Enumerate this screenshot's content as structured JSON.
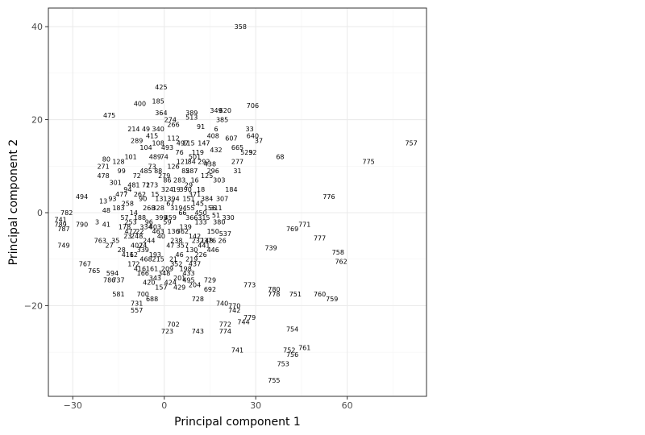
{
  "chart_data": {
    "type": "scatter",
    "xlabel": "Principal component 1",
    "ylabel": "Principal component 2",
    "xlim": [
      -38,
      86
    ],
    "ylim": [
      -39.5,
      44
    ],
    "x_ticks": [
      -30,
      0,
      30,
      60
    ],
    "y_ticks": [
      -20,
      0,
      20,
      40
    ],
    "x_tick_labels": [
      "−30",
      "0",
      "30",
      "60"
    ],
    "y_tick_labels": [
      "−20",
      "0",
      "20",
      "40"
    ],
    "grid": true,
    "grid_minor": true,
    "legend": "none",
    "point_style": "text labels (row ids)",
    "colors": {
      "panel_border": "#333333",
      "grid_major": "#ebebeb",
      "grid_minor": "#f5f5f5",
      "text": "#000000",
      "tick_text": "#4d4d4d"
    },
    "points": [
      {
        "label": "358",
        "x": 25,
        "y": 40
      },
      {
        "label": "425",
        "x": -1,
        "y": 27
      },
      {
        "label": "185",
        "x": -2,
        "y": 24
      },
      {
        "label": "400",
        "x": -8,
        "y": 23.5
      },
      {
        "label": "706",
        "x": 29,
        "y": 23
      },
      {
        "label": "349",
        "x": 17,
        "y": 22
      },
      {
        "label": "620",
        "x": 20,
        "y": 22
      },
      {
        "label": "389",
        "x": 9,
        "y": 21.5
      },
      {
        "label": "364",
        "x": -1,
        "y": 21.5
      },
      {
        "label": "475",
        "x": -18,
        "y": 21
      },
      {
        "label": "513",
        "x": 9,
        "y": 20.5
      },
      {
        "label": "274",
        "x": 2,
        "y": 20
      },
      {
        "label": "385",
        "x": 19,
        "y": 20
      },
      {
        "label": "266",
        "x": 3,
        "y": 19
      },
      {
        "label": "214",
        "x": -10,
        "y": 18
      },
      {
        "label": "49",
        "x": -6,
        "y": 18
      },
      {
        "label": "340",
        "x": -2,
        "y": 18
      },
      {
        "label": "91",
        "x": 12,
        "y": 18.5
      },
      {
        "label": "6",
        "x": 17,
        "y": 18
      },
      {
        "label": "33",
        "x": 28,
        "y": 18
      },
      {
        "label": "415",
        "x": -4,
        "y": 16.5
      },
      {
        "label": "408",
        "x": 16,
        "y": 16.5
      },
      {
        "label": "607",
        "x": 22,
        "y": 16
      },
      {
        "label": "640",
        "x": 29,
        "y": 16.5
      },
      {
        "label": "37",
        "x": 31,
        "y": 15.5
      },
      {
        "label": "289",
        "x": -9,
        "y": 15.5
      },
      {
        "label": "147",
        "x": 13,
        "y": 15
      },
      {
        "label": "665",
        "x": 24,
        "y": 14
      },
      {
        "label": "432",
        "x": 17,
        "y": 13.5
      },
      {
        "label": "529",
        "x": 27,
        "y": 13
      },
      {
        "label": "32",
        "x": 29,
        "y": 13
      },
      {
        "label": "68",
        "x": 38,
        "y": 12
      },
      {
        "label": "757",
        "x": 81,
        "y": 15
      },
      {
        "label": "775",
        "x": 67,
        "y": 11
      },
      {
        "label": "80",
        "x": -19,
        "y": 11.5
      },
      {
        "label": "128",
        "x": -15,
        "y": 11
      },
      {
        "label": "271",
        "x": -20,
        "y": 10
      },
      {
        "label": "277",
        "x": 24,
        "y": 11
      },
      {
        "label": "438",
        "x": 15,
        "y": 10.5
      },
      {
        "label": "31",
        "x": 24,
        "y": 9
      },
      {
        "label": "478",
        "x": -20,
        "y": 8
      },
      {
        "label": "301",
        "x": -16,
        "y": 6.5
      },
      {
        "label": "184",
        "x": 22,
        "y": 5
      },
      {
        "label": "494",
        "x": -27,
        "y": 3.5
      },
      {
        "label": "776",
        "x": 54,
        "y": 3.5
      },
      {
        "label": "330",
        "x": 21,
        "y": -1
      },
      {
        "label": "51",
        "x": 17,
        "y": -0.5
      },
      {
        "label": "782",
        "x": -32,
        "y": 0
      },
      {
        "label": "741",
        "x": -34,
        "y": -1.5
      },
      {
        "label": "789",
        "x": -34,
        "y": -2.5
      },
      {
        "label": "787",
        "x": -33,
        "y": -3.5
      },
      {
        "label": "790",
        "x": -27,
        "y": -2.5
      },
      {
        "label": "771",
        "x": 46,
        "y": -2.5
      },
      {
        "label": "769",
        "x": 42,
        "y": -3.5
      },
      {
        "label": "537",
        "x": 20,
        "y": -4.5
      },
      {
        "label": "777",
        "x": 51,
        "y": -5.5
      },
      {
        "label": "26",
        "x": 19,
        "y": -6
      },
      {
        "label": "749",
        "x": -33,
        "y": -7
      },
      {
        "label": "763",
        "x": -21,
        "y": -6
      },
      {
        "label": "739",
        "x": 35,
        "y": -7.5
      },
      {
        "label": "758",
        "x": 57,
        "y": -8.5
      },
      {
        "label": "762",
        "x": 58,
        "y": -10.5
      },
      {
        "label": "767",
        "x": -26,
        "y": -11
      },
      {
        "label": "765",
        "x": -23,
        "y": -12.5
      },
      {
        "label": "594",
        "x": -17,
        "y": -13
      },
      {
        "label": "786",
        "x": -18,
        "y": -14.5
      },
      {
        "label": "737",
        "x": -15,
        "y": -14.5
      },
      {
        "label": "729",
        "x": 15,
        "y": -14.5
      },
      {
        "label": "204",
        "x": 10,
        "y": -15.5
      },
      {
        "label": "495",
        "x": 8,
        "y": -14.5
      },
      {
        "label": "773",
        "x": 28,
        "y": -15.5
      },
      {
        "label": "780",
        "x": 36,
        "y": -16.5
      },
      {
        "label": "778",
        "x": 36,
        "y": -17.5
      },
      {
        "label": "751",
        "x": 43,
        "y": -17.5
      },
      {
        "label": "760",
        "x": 51,
        "y": -17.5
      },
      {
        "label": "759",
        "x": 55,
        "y": -18.5
      },
      {
        "label": "692",
        "x": 15,
        "y": -16.5
      },
      {
        "label": "581",
        "x": -15,
        "y": -17.5
      },
      {
        "label": "700",
        "x": -7,
        "y": -17.5
      },
      {
        "label": "688",
        "x": -4,
        "y": -18.5
      },
      {
        "label": "728",
        "x": 11,
        "y": -18.5
      },
      {
        "label": "731",
        "x": -9,
        "y": -19.5
      },
      {
        "label": "557",
        "x": -9,
        "y": -21
      },
      {
        "label": "740",
        "x": 19,
        "y": -19.5
      },
      {
        "label": "770",
        "x": 23,
        "y": -20
      },
      {
        "label": "742",
        "x": 23,
        "y": -21
      },
      {
        "label": "779",
        "x": 28,
        "y": -22.5
      },
      {
        "label": "744",
        "x": 26,
        "y": -23.5
      },
      {
        "label": "702",
        "x": 3,
        "y": -24
      },
      {
        "label": "772",
        "x": 20,
        "y": -24
      },
      {
        "label": "723",
        "x": 1,
        "y": -25.5
      },
      {
        "label": "743",
        "x": 11,
        "y": -25.5
      },
      {
        "label": "774",
        "x": 20,
        "y": -25.5
      },
      {
        "label": "754",
        "x": 42,
        "y": -25
      },
      {
        "label": "761",
        "x": 46,
        "y": -29
      },
      {
        "label": "752",
        "x": 41,
        "y": -29.5
      },
      {
        "label": "756",
        "x": 42,
        "y": -30.5
      },
      {
        "label": "741",
        "x": 24,
        "y": -29.5
      },
      {
        "label": "753",
        "x": 39,
        "y": -32.5
      },
      {
        "label": "755",
        "x": 36,
        "y": -36
      },
      {
        "label": "13",
        "x": -20,
        "y": 2.5
      },
      {
        "label": "93",
        "x": -17,
        "y": 3
      },
      {
        "label": "48",
        "x": -19,
        "y": 0.5
      },
      {
        "label": "3",
        "x": -22,
        "y": -2
      },
      {
        "label": "41",
        "x": -19,
        "y": -2.5
      },
      {
        "label": "57",
        "x": -13,
        "y": -1
      },
      {
        "label": "14",
        "x": -10,
        "y": 0
      },
      {
        "label": "22",
        "x": -8,
        "y": -4
      },
      {
        "label": "23",
        "x": -12,
        "y": -5
      },
      {
        "label": "35",
        "x": -16,
        "y": -6
      },
      {
        "label": "27",
        "x": -18,
        "y": -7
      },
      {
        "label": "28",
        "x": -14,
        "y": -8
      },
      {
        "label": "62",
        "x": -10,
        "y": -9
      },
      {
        "label": "24",
        "x": -7,
        "y": -7
      },
      {
        "label": "21",
        "x": 3,
        "y": -10
      },
      {
        "label": "96",
        "x": -5,
        "y": -2
      },
      {
        "label": "15",
        "x": -3,
        "y": 4
      },
      {
        "label": "19",
        "x": 4,
        "y": 5
      },
      {
        "label": "29",
        "x": 8,
        "y": 6
      },
      {
        "label": "16",
        "x": 10,
        "y": 7
      },
      {
        "label": "18",
        "x": 12,
        "y": 5
      },
      {
        "label": "125",
        "x": 14,
        "y": 8
      },
      {
        "label": "156",
        "x": 15,
        "y": 1
      },
      {
        "label": "133",
        "x": 12,
        "y": -2
      },
      {
        "label": "150",
        "x": 16,
        "y": -4
      },
      {
        "label": "148",
        "x": 14,
        "y": -6
      },
      {
        "label": "130",
        "x": 9,
        "y": -8
      },
      {
        "label": "46",
        "x": 5,
        "y": -9
      },
      {
        "label": "47",
        "x": 2,
        "y": -7
      },
      {
        "label": "40",
        "x": -1,
        "y": -5
      },
      {
        "label": "59",
        "x": 1,
        "y": -2
      },
      {
        "label": "66",
        "x": 6,
        "y": 0
      },
      {
        "label": "67",
        "x": 2,
        "y": 2
      },
      {
        "label": "71",
        "x": -6,
        "y": 6
      },
      {
        "label": "72",
        "x": -9,
        "y": 8
      },
      {
        "label": "73",
        "x": -4,
        "y": 10
      },
      {
        "label": "74",
        "x": 0,
        "y": 12
      },
      {
        "label": "76",
        "x": 5,
        "y": 13
      },
      {
        "label": "84",
        "x": 9,
        "y": 11
      },
      {
        "label": "85",
        "x": 7,
        "y": 9
      },
      {
        "label": "86",
        "x": 1,
        "y": 7
      },
      {
        "label": "88",
        "x": -2,
        "y": 9
      },
      {
        "label": "90",
        "x": -7,
        "y": 3
      },
      {
        "label": "94",
        "x": -12,
        "y": 5
      },
      {
        "label": "99",
        "x": -14,
        "y": 9
      },
      {
        "label": "101",
        "x": -11,
        "y": 12
      },
      {
        "label": "104",
        "x": -6,
        "y": 14
      },
      {
        "label": "108",
        "x": -2,
        "y": 15
      },
      {
        "label": "112",
        "x": 3,
        "y": 16
      },
      {
        "label": "115",
        "x": 8,
        "y": 15
      },
      {
        "label": "119",
        "x": 11,
        "y": 13
      },
      {
        "label": "121",
        "x": 6,
        "y": 11
      },
      {
        "label": "126",
        "x": 3,
        "y": 10
      },
      {
        "label": "131",
        "x": -1,
        "y": 3
      },
      {
        "label": "136",
        "x": 3,
        "y": -4
      },
      {
        "label": "139",
        "x": 7,
        "y": -3
      },
      {
        "label": "142",
        "x": 10,
        "y": -5
      },
      {
        "label": "145",
        "x": 11,
        "y": 2
      },
      {
        "label": "151",
        "x": 8,
        "y": 3
      },
      {
        "label": "157",
        "x": -1,
        "y": -16
      },
      {
        "label": "161",
        "x": -4,
        "y": -12
      },
      {
        "label": "166",
        "x": -7,
        "y": -13
      },
      {
        "label": "172",
        "x": -10,
        "y": -11
      },
      {
        "label": "178",
        "x": -13,
        "y": -3
      },
      {
        "label": "183",
        "x": -15,
        "y": 1
      },
      {
        "label": "188",
        "x": -8,
        "y": -1
      },
      {
        "label": "193",
        "x": -3,
        "y": -9
      },
      {
        "label": "198",
        "x": 7,
        "y": -12
      },
      {
        "label": "201",
        "x": 5,
        "y": -14
      },
      {
        "label": "209",
        "x": 1,
        "y": -12
      },
      {
        "label": "215",
        "x": -2,
        "y": -10
      },
      {
        "label": "219",
        "x": 9,
        "y": -10
      },
      {
        "label": "226",
        "x": 12,
        "y": -9
      },
      {
        "label": "232",
        "x": 11,
        "y": -6
      },
      {
        "label": "238",
        "x": 4,
        "y": -6
      },
      {
        "label": "244",
        "x": -5,
        "y": -6
      },
      {
        "label": "248",
        "x": -9,
        "y": -5
      },
      {
        "label": "253",
        "x": -11,
        "y": -2
      },
      {
        "label": "258",
        "x": -12,
        "y": 2
      },
      {
        "label": "262",
        "x": -8,
        "y": 4
      },
      {
        "label": "268",
        "x": -5,
        "y": 1
      },
      {
        "label": "273",
        "x": -4,
        "y": 6
      },
      {
        "label": "279",
        "x": 0,
        "y": 8
      },
      {
        "label": "283",
        "x": 5,
        "y": 7
      },
      {
        "label": "287",
        "x": 9,
        "y": 9
      },
      {
        "label": "292",
        "x": 13,
        "y": 11
      },
      {
        "label": "296",
        "x": 16,
        "y": 9
      },
      {
        "label": "303",
        "x": 18,
        "y": 7
      },
      {
        "label": "307",
        "x": 19,
        "y": 3
      },
      {
        "label": "311",
        "x": 17,
        "y": 1
      },
      {
        "label": "315",
        "x": 13,
        "y": -1
      },
      {
        "label": "319",
        "x": 4,
        "y": 1
      },
      {
        "label": "324",
        "x": 1,
        "y": 5
      },
      {
        "label": "328",
        "x": -2,
        "y": 1
      },
      {
        "label": "334",
        "x": -6,
        "y": -3
      },
      {
        "label": "339",
        "x": -7,
        "y": -8
      },
      {
        "label": "343",
        "x": -3,
        "y": -14
      },
      {
        "label": "348",
        "x": 0,
        "y": -13
      },
      {
        "label": "352",
        "x": 4,
        "y": -11
      },
      {
        "label": "357",
        "x": 6,
        "y": -7
      },
      {
        "label": "362",
        "x": 6,
        "y": -4
      },
      {
        "label": "366",
        "x": 9,
        "y": -1
      },
      {
        "label": "371",
        "x": 10,
        "y": 4
      },
      {
        "label": "376",
        "x": 15,
        "y": -6
      },
      {
        "label": "380",
        "x": 18,
        "y": -2
      },
      {
        "label": "384",
        "x": 14,
        "y": 3
      },
      {
        "label": "390",
        "x": 7,
        "y": 5
      },
      {
        "label": "394",
        "x": 3,
        "y": 3
      },
      {
        "label": "399",
        "x": -1,
        "y": -1
      },
      {
        "label": "403",
        "x": -3,
        "y": -3
      },
      {
        "label": "407",
        "x": -9,
        "y": -7
      },
      {
        "label": "411",
        "x": -12,
        "y": -9
      },
      {
        "label": "416",
        "x": -8,
        "y": -12
      },
      {
        "label": "420",
        "x": -5,
        "y": -15
      },
      {
        "label": "424",
        "x": 2,
        "y": -15
      },
      {
        "label": "429",
        "x": 5,
        "y": -16
      },
      {
        "label": "433",
        "x": 8,
        "y": -13
      },
      {
        "label": "437",
        "x": 10,
        "y": -11
      },
      {
        "label": "441",
        "x": 13,
        "y": -7
      },
      {
        "label": "446",
        "x": 16,
        "y": -8
      },
      {
        "label": "450",
        "x": 12,
        "y": 0
      },
      {
        "label": "455",
        "x": 8,
        "y": 1
      },
      {
        "label": "459",
        "x": 2,
        "y": -1
      },
      {
        "label": "463",
        "x": -2,
        "y": -4
      },
      {
        "label": "468",
        "x": -6,
        "y": -10
      },
      {
        "label": "472",
        "x": -11,
        "y": -4
      },
      {
        "label": "477",
        "x": -14,
        "y": 4
      },
      {
        "label": "481",
        "x": -10,
        "y": 6
      },
      {
        "label": "485",
        "x": -6,
        "y": 9
      },
      {
        "label": "489",
        "x": -3,
        "y": 12
      },
      {
        "label": "493",
        "x": 1,
        "y": 14
      },
      {
        "label": "497",
        "x": 6,
        "y": 15
      },
      {
        "label": "501",
        "x": 10,
        "y": 12
      }
    ]
  }
}
